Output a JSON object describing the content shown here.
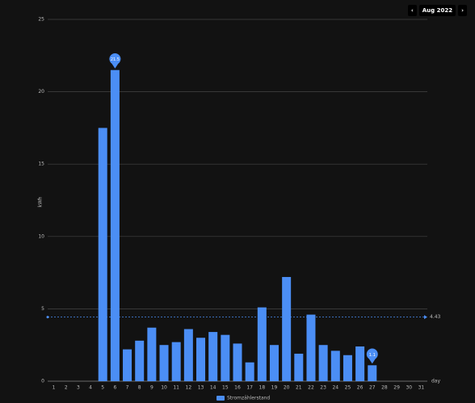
{
  "nav": {
    "period": "Aug 2022"
  },
  "chart_data": {
    "type": "bar",
    "y_axis_label": "kWh",
    "x_axis_label": "day",
    "categories": [
      "1",
      "2",
      "3",
      "4",
      "5",
      "6",
      "7",
      "8",
      "9",
      "10",
      "11",
      "12",
      "13",
      "14",
      "15",
      "16",
      "17",
      "18",
      "19",
      "20",
      "21",
      "22",
      "23",
      "24",
      "25",
      "26",
      "27",
      "28",
      "29",
      "30",
      "31"
    ],
    "series": [
      {
        "name": "Stromzählerstand",
        "color": "#4b8ef5",
        "values": [
          null,
          null,
          null,
          null,
          17.5,
          21.5,
          2.2,
          2.8,
          3.7,
          2.5,
          2.7,
          3.6,
          3.0,
          3.4,
          3.2,
          2.6,
          1.3,
          5.1,
          2.5,
          7.2,
          1.9,
          4.6,
          2.5,
          2.1,
          1.8,
          2.4,
          1.1,
          null,
          null,
          null,
          null
        ]
      }
    ],
    "average": 4.43,
    "mark_max": true,
    "mark_min": true,
    "ylim": [
      0,
      25
    ],
    "yticks": [
      0,
      5,
      10,
      15,
      20,
      25
    ],
    "grid": true
  }
}
